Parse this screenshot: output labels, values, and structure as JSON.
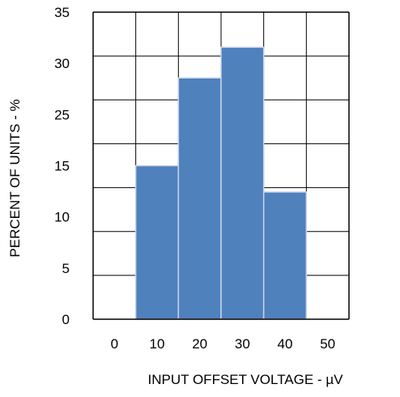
{
  "chart_data": {
    "type": "bar",
    "title": "",
    "xlabel": "INPUT OFFSET VOLTAGE - µV",
    "ylabel": "PERCENT OF UNITS - %",
    "x_ticks": [
      "0",
      "10",
      "20",
      "30",
      "40",
      "50"
    ],
    "y_ticks": [
      "0",
      "5",
      "10",
      "15",
      "25",
      "30",
      "35"
    ],
    "categories": [
      "10",
      "20",
      "30",
      "40"
    ],
    "values": [
      17.5,
      27.5,
      31,
      14.5
    ],
    "ylim": [
      0,
      35
    ],
    "xlim": [
      -0.5,
      5.5
    ],
    "grid": true,
    "bar_color": "#4f81bd",
    "bar_edge_color": "#c9d3e6",
    "grid_color": "#000000"
  }
}
